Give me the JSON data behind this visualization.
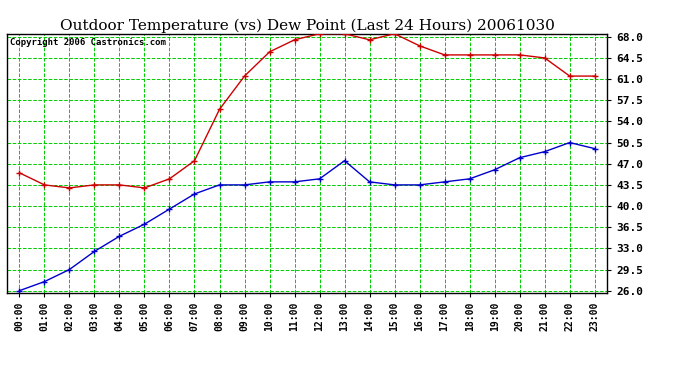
{
  "title": "Outdoor Temperature (vs) Dew Point (Last 24 Hours) 20061030",
  "copyright": "Copyright 2006 Castronics.com",
  "hours": [
    "00:00",
    "01:00",
    "02:00",
    "03:00",
    "04:00",
    "05:00",
    "06:00",
    "07:00",
    "08:00",
    "09:00",
    "10:00",
    "11:00",
    "12:00",
    "13:00",
    "14:00",
    "15:00",
    "16:00",
    "17:00",
    "18:00",
    "19:00",
    "20:00",
    "21:00",
    "22:00",
    "23:00"
  ],
  "temp": [
    45.5,
    43.5,
    43.0,
    43.5,
    43.5,
    43.0,
    44.5,
    47.5,
    56.0,
    61.5,
    65.5,
    67.5,
    68.5,
    68.5,
    67.5,
    68.5,
    66.5,
    65.0,
    65.0,
    65.0,
    65.0,
    64.5,
    61.5,
    61.5
  ],
  "dewpoint": [
    26.0,
    27.5,
    29.5,
    32.5,
    35.0,
    37.0,
    39.5,
    42.0,
    43.5,
    43.5,
    44.0,
    44.0,
    44.5,
    47.5,
    44.0,
    43.5,
    43.5,
    44.0,
    44.5,
    46.0,
    48.0,
    49.0,
    50.5,
    49.5
  ],
  "temp_color": "#cc0000",
  "dew_color": "#0000cc",
  "bg_color": "#ffffff",
  "grid_color": "#00cc00",
  "vgrid_color": "#aaaaaa",
  "ymin": 26.0,
  "ymax": 68.0,
  "yticks": [
    26.0,
    29.5,
    33.0,
    36.5,
    40.0,
    43.5,
    47.0,
    50.5,
    54.0,
    57.5,
    61.0,
    64.5,
    68.0
  ],
  "title_fontsize": 11,
  "copyright_fontsize": 6.5,
  "tick_fontsize": 7,
  "ytick_fontsize": 8
}
